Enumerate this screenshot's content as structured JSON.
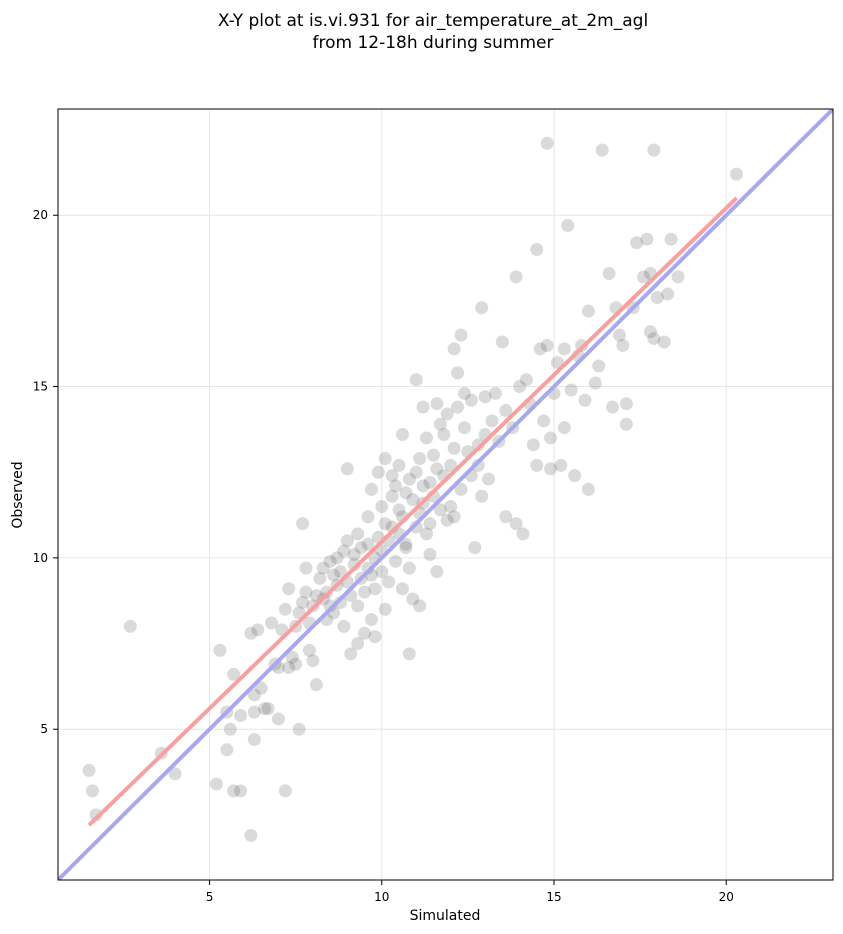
{
  "chart_data": {
    "type": "scatter",
    "title_lines": [
      "X-Y plot at is.vi.931 for air_temperature_at_2m_agl",
      "from 12-18h during summer"
    ],
    "xlabel": "Simulated",
    "ylabel": "Observed",
    "xlim": [
      0.6,
      23.1
    ],
    "ylim": [
      0.6,
      23.1
    ],
    "xticks": [
      5,
      10,
      15,
      20
    ],
    "yticks": [
      5,
      10,
      15,
      20
    ],
    "grid": true,
    "colors": {
      "points": "#555555",
      "fit_line": "#f8a0a0",
      "identity_line": "#a8a8f0"
    },
    "identity_line": {
      "x": [
        0.6,
        23.1
      ],
      "y": [
        0.6,
        23.1
      ]
    },
    "fit_line": {
      "x": [
        1.5,
        20.3
      ],
      "y": [
        2.2,
        20.5
      ]
    },
    "points": [
      [
        1.5,
        3.8
      ],
      [
        1.6,
        3.2
      ],
      [
        1.7,
        2.5
      ],
      [
        2.7,
        8.0
      ],
      [
        3.6,
        4.3
      ],
      [
        4.0,
        3.7
      ],
      [
        5.2,
        3.4
      ],
      [
        5.3,
        7.3
      ],
      [
        5.5,
        4.4
      ],
      [
        5.5,
        5.5
      ],
      [
        5.6,
        5.0
      ],
      [
        5.7,
        6.6
      ],
      [
        5.7,
        3.2
      ],
      [
        5.9,
        3.2
      ],
      [
        5.9,
        5.4
      ],
      [
        6.2,
        1.9
      ],
      [
        6.2,
        7.8
      ],
      [
        6.3,
        5.5
      ],
      [
        6.3,
        4.7
      ],
      [
        6.3,
        6.0
      ],
      [
        6.4,
        7.9
      ],
      [
        6.5,
        6.2
      ],
      [
        6.6,
        5.6
      ],
      [
        6.7,
        5.6
      ],
      [
        6.8,
        8.1
      ],
      [
        6.9,
        6.9
      ],
      [
        7.0,
        5.3
      ],
      [
        7.0,
        6.8
      ],
      [
        7.1,
        7.9
      ],
      [
        7.2,
        8.5
      ],
      [
        7.2,
        3.2
      ],
      [
        7.3,
        9.1
      ],
      [
        7.3,
        6.8
      ],
      [
        7.4,
        7.1
      ],
      [
        7.5,
        6.9
      ],
      [
        7.5,
        8.0
      ],
      [
        7.6,
        5.0
      ],
      [
        7.6,
        8.4
      ],
      [
        7.7,
        8.7
      ],
      [
        7.7,
        11.0
      ],
      [
        7.8,
        9.7
      ],
      [
        7.8,
        9.0
      ],
      [
        7.9,
        7.3
      ],
      [
        7.9,
        8.1
      ],
      [
        8.0,
        7.0
      ],
      [
        8.0,
        8.6
      ],
      [
        8.1,
        6.3
      ],
      [
        8.1,
        8.9
      ],
      [
        8.2,
        9.4
      ],
      [
        8.3,
        8.8
      ],
      [
        8.3,
        9.7
      ],
      [
        8.4,
        8.2
      ],
      [
        8.4,
        9.0
      ],
      [
        8.5,
        8.6
      ],
      [
        8.5,
        9.9
      ],
      [
        8.6,
        9.5
      ],
      [
        8.6,
        8.4
      ],
      [
        8.7,
        10.0
      ],
      [
        8.7,
        9.2
      ],
      [
        8.8,
        8.7
      ],
      [
        8.8,
        9.6
      ],
      [
        8.9,
        10.2
      ],
      [
        8.9,
        8.0
      ],
      [
        9.0,
        9.3
      ],
      [
        9.0,
        10.5
      ],
      [
        9.0,
        12.6
      ],
      [
        9.1,
        8.9
      ],
      [
        9.1,
        7.2
      ],
      [
        9.2,
        9.8
      ],
      [
        9.2,
        10.1
      ],
      [
        9.3,
        8.6
      ],
      [
        9.3,
        7.5
      ],
      [
        9.3,
        10.7
      ],
      [
        9.4,
        9.4
      ],
      [
        9.4,
        10.3
      ],
      [
        9.5,
        9.0
      ],
      [
        9.5,
        7.8
      ],
      [
        9.6,
        9.7
      ],
      [
        9.6,
        10.4
      ],
      [
        9.6,
        11.2
      ],
      [
        9.7,
        8.2
      ],
      [
        9.7,
        9.5
      ],
      [
        9.7,
        12.0
      ],
      [
        9.8,
        10.0
      ],
      [
        9.8,
        9.1
      ],
      [
        9.8,
        7.7
      ],
      [
        9.9,
        12.5
      ],
      [
        9.9,
        10.6
      ],
      [
        10.0,
        9.6
      ],
      [
        10.0,
        11.5
      ],
      [
        10.0,
        10.2
      ],
      [
        10.1,
        8.5
      ],
      [
        10.1,
        12.9
      ],
      [
        10.1,
        11.0
      ],
      [
        10.2,
        10.5
      ],
      [
        10.2,
        9.3
      ],
      [
        10.3,
        11.8
      ],
      [
        10.3,
        12.4
      ],
      [
        10.3,
        10.9
      ],
      [
        10.4,
        9.9
      ],
      [
        10.4,
        12.1
      ],
      [
        10.5,
        11.4
      ],
      [
        10.5,
        10.7
      ],
      [
        10.5,
        12.7
      ],
      [
        10.6,
        9.1
      ],
      [
        10.6,
        11.2
      ],
      [
        10.6,
        13.6
      ],
      [
        10.7,
        10.4
      ],
      [
        10.7,
        11.9
      ],
      [
        10.7,
        10.3
      ],
      [
        10.8,
        12.3
      ],
      [
        10.8,
        9.7
      ],
      [
        10.8,
        7.2
      ],
      [
        10.9,
        11.7
      ],
      [
        10.9,
        8.8
      ],
      [
        11.0,
        12.5
      ],
      [
        11.0,
        10.9
      ],
      [
        11.0,
        15.2
      ],
      [
        11.1,
        11.3
      ],
      [
        11.1,
        12.9
      ],
      [
        11.1,
        8.6
      ],
      [
        11.2,
        12.1
      ],
      [
        11.2,
        11.6
      ],
      [
        11.2,
        14.4
      ],
      [
        11.3,
        10.7
      ],
      [
        11.3,
        13.5
      ],
      [
        11.4,
        12.2
      ],
      [
        11.4,
        11.0
      ],
      [
        11.4,
        10.1
      ],
      [
        11.5,
        13.0
      ],
      [
        11.5,
        11.8
      ],
      [
        11.6,
        12.6
      ],
      [
        11.6,
        14.5
      ],
      [
        11.6,
        9.6
      ],
      [
        11.7,
        13.9
      ],
      [
        11.7,
        11.4
      ],
      [
        11.8,
        12.4
      ],
      [
        11.8,
        13.6
      ],
      [
        11.9,
        11.1
      ],
      [
        11.9,
        14.2
      ],
      [
        12.0,
        12.7
      ],
      [
        12.0,
        11.5
      ],
      [
        12.1,
        13.2
      ],
      [
        12.1,
        16.1
      ],
      [
        12.1,
        11.2
      ],
      [
        12.2,
        15.4
      ],
      [
        12.2,
        14.4
      ],
      [
        12.3,
        12.0
      ],
      [
        12.3,
        16.5
      ],
      [
        12.4,
        13.8
      ],
      [
        12.4,
        14.8
      ],
      [
        12.5,
        13.1
      ],
      [
        12.6,
        14.6
      ],
      [
        12.6,
        12.4
      ],
      [
        12.7,
        10.3
      ],
      [
        12.8,
        13.3
      ],
      [
        12.8,
        12.7
      ],
      [
        12.9,
        17.3
      ],
      [
        12.9,
        11.8
      ],
      [
        13.0,
        14.7
      ],
      [
        13.0,
        13.6
      ],
      [
        13.1,
        12.3
      ],
      [
        13.2,
        14.0
      ],
      [
        13.3,
        14.8
      ],
      [
        13.4,
        13.4
      ],
      [
        13.5,
        16.3
      ],
      [
        13.6,
        11.2
      ],
      [
        13.6,
        14.3
      ],
      [
        13.8,
        13.8
      ],
      [
        13.9,
        18.2
      ],
      [
        13.9,
        11.0
      ],
      [
        14.0,
        15.0
      ],
      [
        14.1,
        10.7
      ],
      [
        14.2,
        15.2
      ],
      [
        14.3,
        14.5
      ],
      [
        14.4,
        13.3
      ],
      [
        14.5,
        19.0
      ],
      [
        14.5,
        12.7
      ],
      [
        14.6,
        16.1
      ],
      [
        14.7,
        14.0
      ],
      [
        14.8,
        22.1
      ],
      [
        14.8,
        16.2
      ],
      [
        14.9,
        13.5
      ],
      [
        14.9,
        12.6
      ],
      [
        15.0,
        14.8
      ],
      [
        15.1,
        15.7
      ],
      [
        15.2,
        12.7
      ],
      [
        15.3,
        13.8
      ],
      [
        15.3,
        16.1
      ],
      [
        15.4,
        19.7
      ],
      [
        15.5,
        14.9
      ],
      [
        15.6,
        12.4
      ],
      [
        15.7,
        15.9
      ],
      [
        15.8,
        16.2
      ],
      [
        15.9,
        14.6
      ],
      [
        16.0,
        12.0
      ],
      [
        16.0,
        17.2
      ],
      [
        16.2,
        15.1
      ],
      [
        16.3,
        15.6
      ],
      [
        16.4,
        21.9
      ],
      [
        16.6,
        18.3
      ],
      [
        16.7,
        14.4
      ],
      [
        16.8,
        17.3
      ],
      [
        16.9,
        16.5
      ],
      [
        17.0,
        16.2
      ],
      [
        17.1,
        14.5
      ],
      [
        17.1,
        13.9
      ],
      [
        17.3,
        17.3
      ],
      [
        17.4,
        19.2
      ],
      [
        17.6,
        18.2
      ],
      [
        17.7,
        19.3
      ],
      [
        17.8,
        18.3
      ],
      [
        17.8,
        16.6
      ],
      [
        17.9,
        21.9
      ],
      [
        17.9,
        16.4
      ],
      [
        18.0,
        17.6
      ],
      [
        18.2,
        16.3
      ],
      [
        18.3,
        17.7
      ],
      [
        18.4,
        19.3
      ],
      [
        18.6,
        18.2
      ],
      [
        20.3,
        21.2
      ]
    ]
  }
}
